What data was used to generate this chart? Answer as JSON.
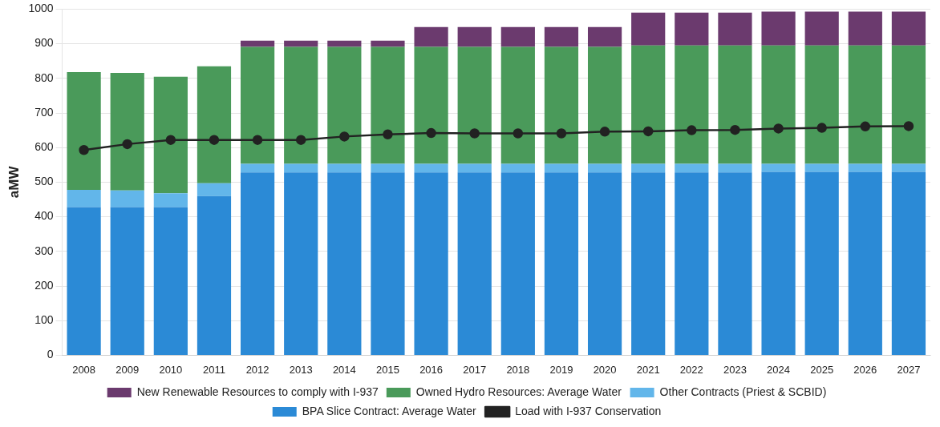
{
  "chart_data": {
    "type": "bar",
    "stacked": true,
    "ylabel": "aMW",
    "categories": [
      "2008",
      "2009",
      "2010",
      "2011",
      "2012",
      "2013",
      "2014",
      "2015",
      "2016",
      "2017",
      "2018",
      "2019",
      "2020",
      "2021",
      "2022",
      "2023",
      "2024",
      "2025",
      "2026",
      "2027"
    ],
    "series": [
      {
        "name": "BPA Slice Contract: Average Water",
        "color": "#2b8ad6",
        "values": [
          428,
          428,
          428,
          460,
          528,
          528,
          528,
          528,
          528,
          528,
          528,
          528,
          528,
          528,
          528,
          528,
          530,
          530,
          530,
          530
        ]
      },
      {
        "name": "Other Contracts (Priest & SCBID)",
        "color": "#62b6ea",
        "values": [
          50,
          48,
          40,
          37,
          25,
          25,
          25,
          25,
          25,
          25,
          25,
          25,
          25,
          25,
          25,
          25,
          23,
          23,
          23,
          23
        ]
      },
      {
        "name": "Owned Hydro Resources: Average Water",
        "color": "#4a9a5a",
        "values": [
          340,
          340,
          337,
          338,
          338,
          338,
          338,
          338,
          338,
          338,
          338,
          338,
          338,
          342,
          342,
          342,
          342,
          342,
          342,
          342
        ]
      },
      {
        "name": "New Renewable Resources to comply with I-937",
        "color": "#6b3a6e",
        "values": [
          0,
          0,
          0,
          0,
          18,
          18,
          18,
          18,
          57,
          57,
          57,
          57,
          57,
          95,
          95,
          95,
          98,
          98,
          98,
          98
        ]
      },
      {
        "name": "Load with I-937 Conservation",
        "type": "line",
        "color": "#222222",
        "marker": "circle",
        "values": [
          593,
          610,
          622,
          622,
          622,
          622,
          632,
          638,
          642,
          641,
          641,
          641,
          646,
          647,
          650,
          651,
          655,
          657,
          661,
          662
        ]
      }
    ],
    "ylim": [
      0,
      1000
    ],
    "yticks": [
      0,
      100,
      200,
      300,
      400,
      500,
      600,
      700,
      800,
      900,
      1000
    ],
    "grid": "y",
    "legend": "bottom"
  }
}
